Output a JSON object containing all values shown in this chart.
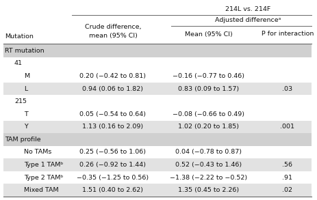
{
  "title_main": "214L vs. 214F",
  "col_header_top": "Adjusted differenceᵃ",
  "col_mutation": "Mutation",
  "col_crude": "Crude difference,\nmean (95% CI)",
  "col_mean": "Mean (95% CI)",
  "col_p": "P for interaction",
  "sections": [
    {
      "label": "RT mutation",
      "type": "section"
    },
    {
      "label": "41",
      "type": "subsection"
    },
    {
      "label": "M",
      "type": "data",
      "crude": "0.20 (−0.42 to 0.81)",
      "adj_mean": "−0.16 (−0.77 to 0.46)",
      "p": "",
      "shaded": false
    },
    {
      "label": "L",
      "type": "data",
      "crude": "0.94 (0.06 to 1.82)",
      "adj_mean": "0.83 (0.09 to 1.57)",
      "p": ".03",
      "shaded": true
    },
    {
      "label": "215",
      "type": "subsection"
    },
    {
      "label": "T",
      "type": "data",
      "crude": "0.05 (−0.54 to 0.64)",
      "adj_mean": "−0.08 (−0.66 to 0.49)",
      "p": "",
      "shaded": false
    },
    {
      "label": "Y",
      "type": "data",
      "crude": "1.13 (0.16 to 2.09)",
      "adj_mean": "1.02 (0.20 to 1.85)",
      "p": ".001",
      "shaded": true
    },
    {
      "label": "TAM profile",
      "type": "section"
    },
    {
      "label": "No TAMs",
      "type": "data",
      "crude": "0.25 (−0.56 to 1.06)",
      "adj_mean": "0.04 (−0.78 to 0.87)",
      "p": "",
      "shaded": false
    },
    {
      "label": "Type 1 TAMᵇ",
      "type": "data",
      "crude": "0.26 (−0.92 to 1.44)",
      "adj_mean": "0.52 (−0.43 to 1.46)",
      "p": ".56",
      "shaded": true
    },
    {
      "label": "Type 2 TAMᵇ",
      "type": "data",
      "crude": "−0.35 (−1.25 to 0.56)",
      "adj_mean": "−1.38 (−2.22 to −0.52)",
      "p": ".91",
      "shaded": false
    },
    {
      "label": "Mixed TAM",
      "type": "data",
      "crude": "1.51 (0.40 to 2.62)",
      "adj_mean": "1.35 (0.45 to 2.26)",
      "p": ".02",
      "shaded": true
    }
  ],
  "bg_color": "#ffffff",
  "shade_color": "#e2e2e2",
  "section_bg": "#d0d0d0",
  "line_color": "#666666",
  "text_color": "#111111",
  "font_size": 6.8,
  "header_font_size": 6.8
}
